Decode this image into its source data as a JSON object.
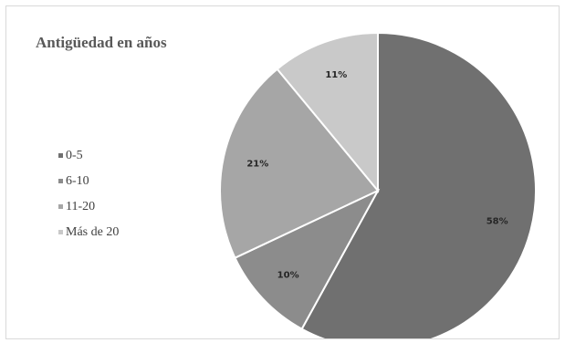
{
  "chart_data": {
    "type": "pie",
    "title": "Antigüedad en años",
    "categories": [
      "0-5",
      "6-10",
      "11-20",
      "Más de 20"
    ],
    "values": [
      58,
      10,
      21,
      11
    ],
    "data_labels": [
      "58%",
      "10%",
      "21%",
      "11%"
    ],
    "colors": [
      "#707070",
      "#8c8c8c",
      "#a6a6a6",
      "#c9c9c9"
    ],
    "legend_position": "left",
    "start_angle": "12 o'clock, clockwise"
  }
}
